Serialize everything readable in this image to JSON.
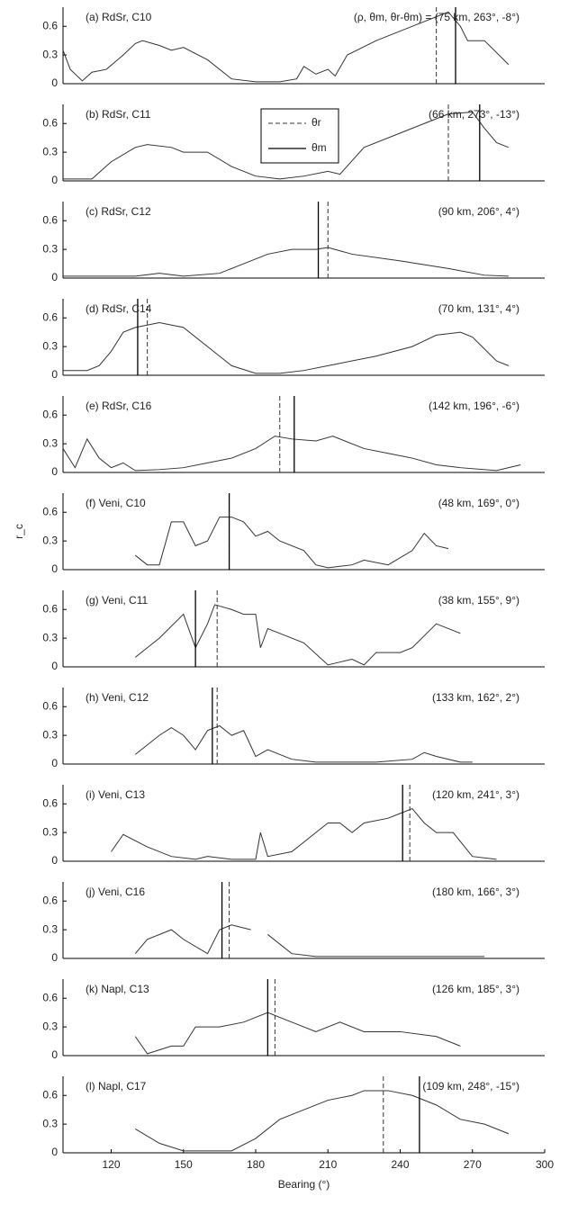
{
  "chart_data": [
    {
      "type": "line",
      "label": "(a) RdSr, C10",
      "annotation": "(ρ, θm, θr-θm) = (75 km, 263°, -8°)",
      "xlim": [
        100,
        300
      ],
      "ylim": [
        0,
        0.8
      ],
      "yticks": [
        0,
        0.3,
        0.6
      ],
      "x": [
        100,
        103,
        108,
        112,
        118,
        125,
        130,
        133,
        140,
        145,
        150,
        160,
        170,
        180,
        190,
        197,
        200,
        205,
        210,
        213,
        218,
        230,
        240,
        250,
        255,
        260,
        265,
        268,
        275,
        285
      ],
      "values": [
        0.35,
        0.15,
        0.03,
        0.12,
        0.15,
        0.3,
        0.42,
        0.45,
        0.4,
        0.35,
        0.38,
        0.25,
        0.05,
        0.02,
        0.02,
        0.05,
        0.18,
        0.1,
        0.15,
        0.08,
        0.3,
        0.45,
        0.55,
        0.65,
        0.7,
        0.75,
        0.6,
        0.45,
        0.45,
        0.2
      ],
      "theta_r": 255,
      "theta_m": 263
    },
    {
      "type": "line",
      "label": "(b) RdSr, C11",
      "annotation": "(66 km, 273°, -13°)",
      "xlim": [
        100,
        300
      ],
      "ylim": [
        0,
        0.8
      ],
      "yticks": [
        0,
        0.3,
        0.6
      ],
      "legend": [
        "θr",
        "θm"
      ],
      "x": [
        100,
        112,
        120,
        130,
        135,
        145,
        150,
        160,
        170,
        180,
        190,
        200,
        210,
        215,
        225,
        240,
        250,
        260,
        270,
        275,
        280,
        285
      ],
      "values": [
        0.02,
        0.02,
        0.2,
        0.35,
        0.38,
        0.35,
        0.3,
        0.3,
        0.15,
        0.05,
        0.02,
        0.05,
        0.1,
        0.07,
        0.35,
        0.5,
        0.6,
        0.7,
        0.72,
        0.55,
        0.4,
        0.35
      ],
      "theta_r": 260,
      "theta_m": 273
    },
    {
      "type": "line",
      "label": "(c) RdSr, C12",
      "annotation": "(90 km, 206°, 4°)",
      "xlim": [
        100,
        300
      ],
      "ylim": [
        0,
        0.8
      ],
      "yticks": [
        0,
        0.3,
        0.6
      ],
      "x": [
        100,
        130,
        140,
        150,
        165,
        175,
        185,
        195,
        205,
        210,
        220,
        240,
        260,
        275,
        285
      ],
      "values": [
        0.02,
        0.02,
        0.05,
        0.02,
        0.05,
        0.15,
        0.25,
        0.3,
        0.3,
        0.32,
        0.25,
        0.18,
        0.1,
        0.03,
        0.02
      ],
      "theta_r": 210,
      "theta_m": 206
    },
    {
      "type": "line",
      "label": "(d) RdSr, C14",
      "annotation": "(70 km, 131°, 4°)",
      "xlim": [
        100,
        300
      ],
      "ylim": [
        0,
        0.8
      ],
      "yticks": [
        0,
        0.3,
        0.6
      ],
      "x": [
        100,
        110,
        115,
        120,
        125,
        130,
        140,
        150,
        160,
        170,
        180,
        190,
        200,
        210,
        230,
        245,
        255,
        265,
        270,
        280,
        285
      ],
      "values": [
        0.05,
        0.05,
        0.1,
        0.25,
        0.45,
        0.5,
        0.55,
        0.5,
        0.3,
        0.1,
        0.02,
        0.02,
        0.05,
        0.1,
        0.2,
        0.3,
        0.42,
        0.45,
        0.4,
        0.15,
        0.1
      ],
      "theta_r": 135,
      "theta_m": 131
    },
    {
      "type": "line",
      "label": "(e) RdSr, C16",
      "annotation": "(142 km, 196°, -6°)",
      "xlim": [
        100,
        300
      ],
      "ylim": [
        0,
        0.8
      ],
      "yticks": [
        0,
        0.3,
        0.6
      ],
      "x": [
        100,
        105,
        110,
        115,
        120,
        125,
        130,
        140,
        150,
        160,
        170,
        180,
        188,
        195,
        205,
        212,
        225,
        235,
        245,
        255,
        265,
        280,
        290
      ],
      "values": [
        0.25,
        0.05,
        0.35,
        0.15,
        0.05,
        0.1,
        0.02,
        0.03,
        0.05,
        0.1,
        0.15,
        0.25,
        0.38,
        0.35,
        0.33,
        0.38,
        0.25,
        0.2,
        0.15,
        0.08,
        0.05,
        0.02,
        0.08
      ],
      "theta_r": 190,
      "theta_m": 196
    },
    {
      "type": "line",
      "label": "(f) Veni, C10",
      "annotation": "(48 km, 169°, 0°)",
      "xlim": [
        100,
        300
      ],
      "ylim": [
        0,
        0.8
      ],
      "yticks": [
        0,
        0.3,
        0.6
      ],
      "ylabel": "r_c",
      "x": [
        130,
        135,
        140,
        145,
        150,
        155,
        160,
        165,
        170,
        175,
        180,
        185,
        190,
        200,
        205,
        210,
        220,
        225,
        235,
        245,
        250,
        255,
        260
      ],
      "values": [
        0.15,
        0.05,
        0.05,
        0.5,
        0.5,
        0.25,
        0.3,
        0.55,
        0.55,
        0.5,
        0.35,
        0.4,
        0.3,
        0.2,
        0.05,
        0.02,
        0.05,
        0.1,
        0.05,
        0.2,
        0.38,
        0.25,
        0.22
      ],
      "theta_r": 169,
      "theta_m": 169
    },
    {
      "type": "line",
      "label": "(g) Veni, C11",
      "annotation": "(38 km, 155°, 9°)",
      "xlim": [
        100,
        300
      ],
      "ylim": [
        0,
        0.8
      ],
      "yticks": [
        0,
        0.3,
        0.6
      ],
      "x": [
        130,
        140,
        150,
        155,
        160,
        163,
        170,
        175,
        180,
        182,
        185,
        190,
        200,
        210,
        215,
        220,
        225,
        230,
        240,
        245,
        255,
        265
      ],
      "values": [
        0.1,
        0.3,
        0.55,
        0.2,
        0.45,
        0.65,
        0.6,
        0.55,
        0.55,
        0.2,
        0.4,
        0.35,
        0.25,
        0.02,
        0.05,
        0.08,
        0.02,
        0.15,
        0.15,
        0.2,
        0.45,
        0.35
      ],
      "theta_r": 164,
      "theta_m": 155
    },
    {
      "type": "line",
      "label": "(h) Veni, C12",
      "annotation": "(133 km, 162°, 2°)",
      "xlim": [
        100,
        300
      ],
      "ylim": [
        0,
        0.8
      ],
      "yticks": [
        0,
        0.3,
        0.6
      ],
      "x": [
        130,
        140,
        145,
        150,
        155,
        160,
        165,
        170,
        175,
        180,
        185,
        195,
        205,
        230,
        245,
        250,
        255,
        265,
        270
      ],
      "values": [
        0.1,
        0.3,
        0.38,
        0.3,
        0.15,
        0.35,
        0.4,
        0.3,
        0.35,
        0.08,
        0.15,
        0.05,
        0.02,
        0.02,
        0.05,
        0.12,
        0.08,
        0.02,
        0.02
      ],
      "theta_r": 164,
      "theta_m": 162
    },
    {
      "type": "line",
      "label": "(i) Veni, C13",
      "annotation": "(120 km, 241°, 3°)",
      "xlim": [
        100,
        300
      ],
      "ylim": [
        0,
        0.8
      ],
      "yticks": [
        0,
        0.3,
        0.6
      ],
      "x": [
        120,
        125,
        135,
        145,
        155,
        160,
        170,
        180,
        182,
        185,
        195,
        205,
        210,
        215,
        220,
        225,
        235,
        240,
        245,
        250,
        255,
        262,
        270,
        280
      ],
      "values": [
        0.1,
        0.28,
        0.15,
        0.05,
        0.02,
        0.05,
        0.02,
        0.02,
        0.3,
        0.05,
        0.1,
        0.3,
        0.4,
        0.4,
        0.3,
        0.4,
        0.45,
        0.5,
        0.55,
        0.4,
        0.3,
        0.3,
        0.05,
        0.02
      ],
      "theta_r": 244,
      "theta_m": 241
    },
    {
      "type": "line",
      "label": "(j) Veni, C16",
      "annotation": "(180 km, 166°, 3°)",
      "xlim": [
        100,
        300
      ],
      "ylim": [
        0,
        0.8
      ],
      "yticks": [
        0,
        0.3,
        0.6
      ],
      "x": [
        130,
        135,
        145,
        150,
        160,
        165,
        170,
        178,
        180,
        185,
        195,
        205,
        230,
        250,
        265,
        275
      ],
      "values": [
        0.05,
        0.2,
        0.3,
        0.2,
        0.05,
        0.3,
        0.35,
        0.3,
        null,
        0.25,
        0.05,
        0.02,
        0.02,
        0.02,
        0.02,
        0.02
      ],
      "theta_r": 169,
      "theta_m": 166
    },
    {
      "type": "line",
      "label": "(k) Napl, C13",
      "annotation": "(126 km, 185°, 3°)",
      "xlim": [
        100,
        300
      ],
      "ylim": [
        0,
        0.8
      ],
      "yticks": [
        0,
        0.3,
        0.6
      ],
      "x": [
        130,
        135,
        145,
        150,
        155,
        165,
        175,
        185,
        195,
        205,
        215,
        225,
        240,
        255,
        265
      ],
      "values": [
        0.2,
        0.02,
        0.1,
        0.1,
        0.3,
        0.3,
        0.35,
        0.45,
        0.35,
        0.25,
        0.35,
        0.25,
        0.25,
        0.2,
        0.1
      ],
      "theta_r": 188,
      "theta_m": 185
    },
    {
      "type": "line",
      "label": "(l) Napl, C17",
      "annotation": "(109 km, 248°, -15°)",
      "xlim": [
        100,
        300
      ],
      "ylim": [
        0,
        0.8
      ],
      "yticks": [
        0,
        0.3,
        0.6
      ],
      "xticks": [
        120,
        150,
        180,
        210,
        240,
        270,
        300
      ],
      "xlabel": "Bearing (°)",
      "x": [
        130,
        140,
        150,
        170,
        180,
        190,
        200,
        210,
        220,
        225,
        235,
        245,
        255,
        265,
        275,
        285
      ],
      "values": [
        0.25,
        0.1,
        0.02,
        0.02,
        0.15,
        0.35,
        0.45,
        0.55,
        0.6,
        0.65,
        0.65,
        0.6,
        0.5,
        0.35,
        0.3,
        0.2
      ],
      "theta_r": 233,
      "theta_m": 248
    }
  ]
}
